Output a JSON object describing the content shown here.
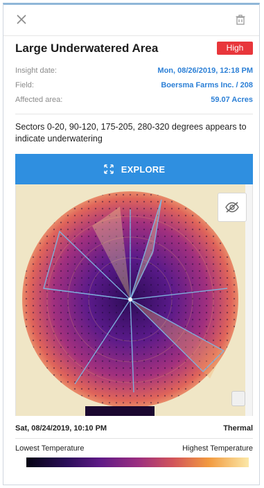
{
  "insight": {
    "title": "Large Underwatered Area",
    "severity": "High",
    "severity_color": "#e8363b",
    "meta": [
      {
        "label": "Insight date:",
        "value": "Mon, 08/26/2019, 12:18 PM"
      },
      {
        "label": "Field:",
        "value": "Boersma Farms Inc. / 208"
      },
      {
        "label": "Affected area:",
        "value": "59.07 Acres"
      }
    ],
    "description": "Sectors 0-20, 90-120, 175-205, 280-320 degrees appears to indicate underwatering"
  },
  "explore_button": {
    "label": "EXPLORE",
    "icon": "expand-arrows-icon"
  },
  "map": {
    "date": "Sat, 08/24/2019, 10:10 PM",
    "layer": "Thermal",
    "toggle_icon": "eye-off-icon",
    "legend_low": "Lowest Temperature",
    "legend_high": "Highest Temperature"
  },
  "header": {
    "close_icon": "close-icon",
    "delete_icon": "trash-icon"
  },
  "colors": {
    "accent": "#2f8fe0",
    "link": "#2b7fd6"
  }
}
